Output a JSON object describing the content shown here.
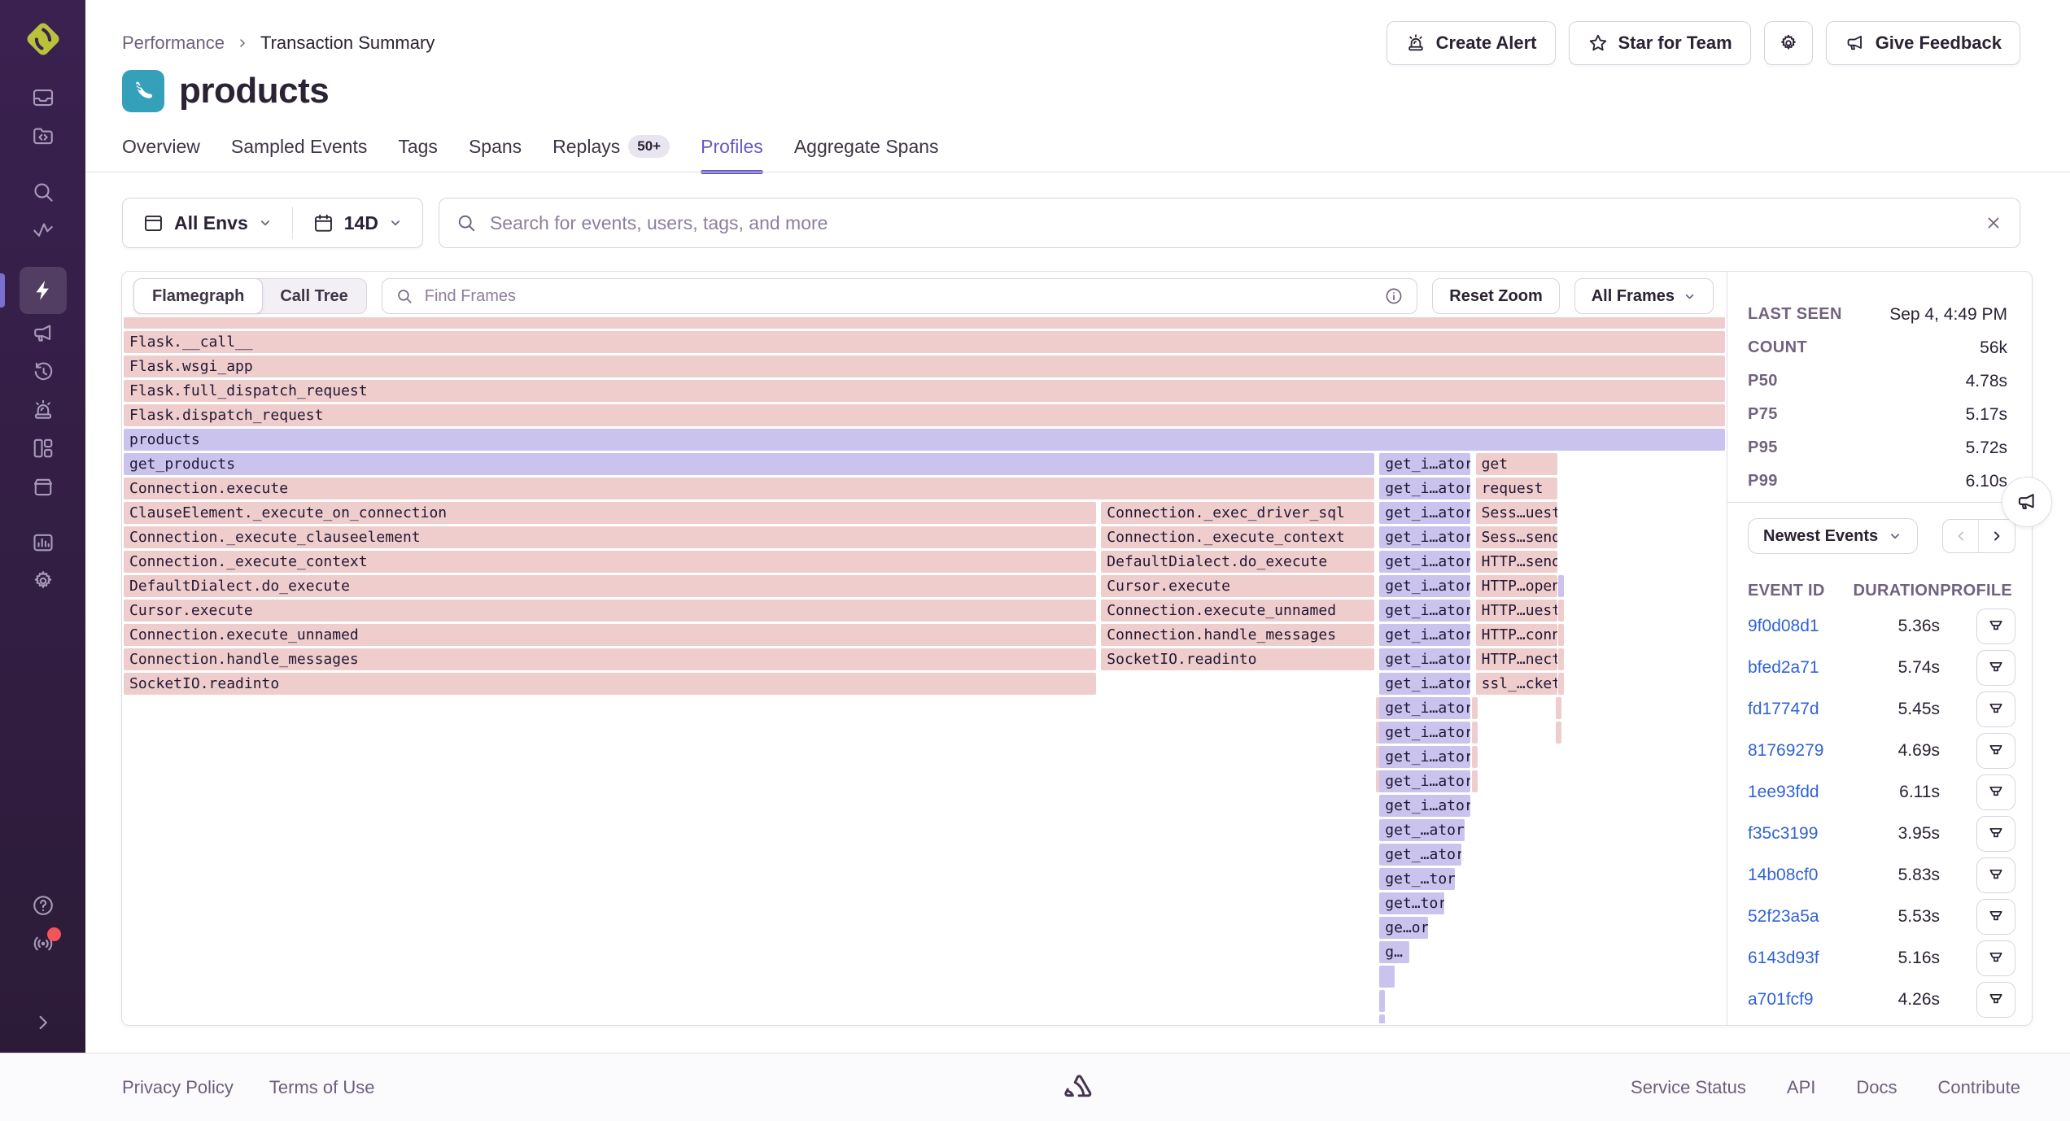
{
  "colors": {
    "accent": "#6559c5",
    "link_blue": "#3162d4",
    "frame_pink": "#efcdcc",
    "frame_purple": "#c9c3ee",
    "sidebar_top": "#3a2150",
    "sidebar_bottom": "#2c1b38",
    "text_dark": "#2b2233",
    "text_muted": "#71627e",
    "border": "#e0dce5",
    "notification_red": "#f55459",
    "platform_icon_teal": "#35a0b9",
    "logo_lime": "#b9c23b"
  },
  "sidebar": {
    "items": [
      {
        "name": "issues",
        "icon": "issues-icon"
      },
      {
        "name": "projects",
        "icon": "projects-icon"
      },
      {
        "name": "explore",
        "icon": "search-icon",
        "gap": true
      },
      {
        "name": "metrics",
        "icon": "metrics-icon"
      },
      {
        "name": "profiling",
        "icon": "lightning-icon",
        "active": true,
        "gap": true
      },
      {
        "name": "user-feedback",
        "icon": "megaphone-icon"
      },
      {
        "name": "replays",
        "icon": "clock-rewind-icon"
      },
      {
        "name": "alerts",
        "icon": "siren-icon"
      },
      {
        "name": "dashboards",
        "icon": "dashboards-icon"
      },
      {
        "name": "releases",
        "icon": "archive-icon"
      },
      {
        "name": "stats",
        "icon": "bar-chart-icon",
        "gap": true
      },
      {
        "name": "settings",
        "icon": "gear-icon"
      }
    ],
    "bottom_items": [
      {
        "name": "help",
        "icon": "help-icon"
      },
      {
        "name": "whats-new",
        "icon": "broadcast-icon",
        "dot": true
      },
      {
        "name": "expand-sidebar",
        "icon": "chevron-right-icon",
        "collapse": true
      }
    ]
  },
  "breadcrumb": {
    "items": [
      "Performance",
      "Transaction Summary"
    ]
  },
  "page": {
    "title": "products"
  },
  "header_actions": [
    {
      "name": "create-alert-button",
      "icon": "siren-icon",
      "label": "Create Alert"
    },
    {
      "name": "star-for-team-button",
      "icon": "star-icon",
      "label": "Star for Team"
    },
    {
      "name": "settings-button",
      "icon": "gear-icon",
      "label": ""
    },
    {
      "name": "give-feedback-button",
      "icon": "megaphone-icon",
      "label": "Give Feedback"
    }
  ],
  "tabs": [
    {
      "label": "Overview"
    },
    {
      "label": "Sampled Events"
    },
    {
      "label": "Tags"
    },
    {
      "label": "Spans"
    },
    {
      "label": "Replays",
      "badge": "50+"
    },
    {
      "label": "Profiles",
      "active": true
    },
    {
      "label": "Aggregate Spans"
    }
  ],
  "filters": {
    "environment": "All Envs",
    "date_range": "14D",
    "search_placeholder": "Search for events, users, tags, and more"
  },
  "profile_toolbar": {
    "view_options": [
      "Flamegraph",
      "Call Tree"
    ],
    "selected_view": "Flamegraph",
    "find_placeholder": "Find Frames",
    "reset_zoom_label": "Reset Zoom",
    "frame_filter_label": "All Frames"
  },
  "flamegraph": {
    "rows": [
      [
        [
          0,
          100,
          "r",
          ""
        ]
      ],
      [
        [
          0,
          100,
          "r",
          "Flask.__call__"
        ]
      ],
      [
        [
          0,
          100,
          "r",
          "Flask.wsgi_app"
        ]
      ],
      [
        [
          0,
          100,
          "r",
          "Flask.full_dispatch_request"
        ]
      ],
      [
        [
          0,
          100,
          "r",
          "Flask.dispatch_request"
        ]
      ],
      [
        [
          0,
          100,
          "p",
          "products"
        ]
      ],
      [
        [
          0,
          78.09,
          "p",
          "get_products"
        ],
        [
          78.42,
          5.68,
          "p",
          "get_i…ator"
        ],
        [
          84.43,
          5.11,
          "r",
          "get"
        ]
      ],
      [
        [
          0,
          78.09,
          "r",
          "Connection.execute"
        ],
        [
          78.42,
          5.68,
          "p",
          "get_i…ator"
        ],
        [
          84.43,
          5.11,
          "r",
          "request"
        ]
      ],
      [
        [
          0,
          60.71,
          "r",
          "ClauseElement._execute_on_connection"
        ],
        [
          61.04,
          17.05,
          "r",
          "Connection._exec_driver_sql"
        ],
        [
          78.42,
          5.68,
          "p",
          "get_i…ator"
        ],
        [
          84.43,
          5.11,
          "r",
          "Sess…uest"
        ]
      ],
      [
        [
          0,
          60.71,
          "r",
          "Connection._execute_clauseelement"
        ],
        [
          61.04,
          17.05,
          "r",
          "Connection._execute_context"
        ],
        [
          78.42,
          5.68,
          "p",
          "get_i…ator"
        ],
        [
          84.43,
          5.11,
          "r",
          "Sess…send"
        ]
      ],
      [
        [
          0,
          60.71,
          "r",
          "Connection._execute_context"
        ],
        [
          61.04,
          17.05,
          "r",
          "DefaultDialect.do_execute"
        ],
        [
          78.42,
          5.68,
          "p",
          "get_i…ator"
        ],
        [
          84.43,
          5.11,
          "r",
          "HTTP…send"
        ]
      ],
      [
        [
          0,
          60.71,
          "r",
          "DefaultDialect.do_execute"
        ],
        [
          61.04,
          17.05,
          "r",
          "Cursor.execute"
        ],
        [
          78.42,
          5.68,
          "p",
          "get_i…ator"
        ],
        [
          84.43,
          5.11,
          "r",
          "HTTP…open"
        ],
        [
          89.6,
          0.18,
          "p",
          ""
        ]
      ],
      [
        [
          0,
          60.71,
          "r",
          "Cursor.execute"
        ],
        [
          61.04,
          17.05,
          "r",
          "Connection.execute_unnamed"
        ],
        [
          78.42,
          5.68,
          "p",
          "get_i…ator"
        ],
        [
          84.43,
          5.11,
          "r",
          "HTTP…uest"
        ],
        [
          89.6,
          0.1,
          "r",
          ""
        ]
      ],
      [
        [
          0,
          60.71,
          "r",
          "Connection.execute_unnamed"
        ],
        [
          61.04,
          17.05,
          "r",
          "Connection.handle_messages"
        ],
        [
          78.42,
          5.68,
          "p",
          "get_i…ator"
        ],
        [
          84.43,
          5.11,
          "r",
          "HTTP…conn"
        ],
        [
          89.6,
          0.1,
          "r",
          ""
        ]
      ],
      [
        [
          0,
          60.71,
          "r",
          "Connection.handle_messages"
        ],
        [
          61.04,
          17.05,
          "r",
          "SocketIO.readinto"
        ],
        [
          78.42,
          5.68,
          "p",
          "get_i…ator"
        ],
        [
          84.43,
          5.11,
          "r",
          "HTTP…nect"
        ],
        [
          89.6,
          0.1,
          "r",
          ""
        ]
      ],
      [
        [
          0,
          60.71,
          "r",
          "SocketIO.readinto"
        ],
        [
          78.42,
          5.68,
          "p",
          "get_i…ator"
        ],
        [
          84.43,
          5.11,
          "r",
          "ssl_…cket"
        ],
        [
          89.6,
          0.1,
          "r",
          ""
        ]
      ],
      [
        [
          78.22,
          0.12,
          "r",
          ""
        ],
        [
          78.42,
          5.68,
          "p",
          "get_i…ator"
        ],
        [
          84.18,
          0.12,
          "r",
          ""
        ],
        [
          89.45,
          0.1,
          "r",
          ""
        ]
      ],
      [
        [
          78.22,
          0.12,
          "r",
          ""
        ],
        [
          78.42,
          5.68,
          "p",
          "get_i…ator"
        ],
        [
          84.18,
          0.12,
          "r",
          ""
        ],
        [
          89.45,
          0.1,
          "r",
          ""
        ]
      ],
      [
        [
          78.22,
          0.12,
          "r",
          ""
        ],
        [
          78.42,
          5.68,
          "p",
          "get_i…ator"
        ],
        [
          84.18,
          0.12,
          "r",
          ""
        ]
      ],
      [
        [
          78.22,
          0.12,
          "r",
          ""
        ],
        [
          78.42,
          5.68,
          "p",
          "get_i…ator"
        ],
        [
          84.18,
          0.12,
          "r",
          ""
        ]
      ],
      [
        [
          78.42,
          5.68,
          "p",
          "get_i…ator"
        ]
      ],
      [
        [
          78.42,
          5.33,
          "p",
          "get_…ator"
        ]
      ],
      [
        [
          78.42,
          5.12,
          "p",
          "get_…ator"
        ]
      ],
      [
        [
          78.42,
          4.72,
          "p",
          "get_…tor"
        ]
      ],
      [
        [
          78.42,
          4.06,
          "p",
          "get…tor"
        ]
      ],
      [
        [
          78.42,
          3.04,
          "p",
          "ge…or"
        ]
      ],
      [
        [
          78.42,
          1.88,
          "p",
          "g…"
        ]
      ],
      [
        [
          78.42,
          0.96,
          "p",
          ""
        ]
      ],
      [
        [
          78.42,
          0.3,
          "p",
          ""
        ]
      ],
      [
        [
          78.42,
          0.12,
          "p",
          ""
        ]
      ]
    ]
  },
  "summary_stats": [
    {
      "label": "LAST SEEN",
      "value": "Sep 4, 4:49 PM"
    },
    {
      "label": "COUNT",
      "value": "56k"
    },
    {
      "label": "P50",
      "value": "4.78s"
    },
    {
      "label": "P75",
      "value": "5.17s"
    },
    {
      "label": "P95",
      "value": "5.72s"
    },
    {
      "label": "P99",
      "value": "6.10s"
    }
  ],
  "events": {
    "sort_label": "Newest Events",
    "columns": [
      "EVENT ID",
      "DURATION",
      "PROFILE"
    ],
    "rows": [
      {
        "id": "9f0d08d1",
        "duration": "5.36s"
      },
      {
        "id": "bfed2a71",
        "duration": "5.74s"
      },
      {
        "id": "fd17747d",
        "duration": "5.45s"
      },
      {
        "id": "81769279",
        "duration": "4.69s"
      },
      {
        "id": "1ee93fdd",
        "duration": "6.11s"
      },
      {
        "id": "f35c3199",
        "duration": "3.95s"
      },
      {
        "id": "14b08cf0",
        "duration": "5.83s"
      },
      {
        "id": "52f23a5a",
        "duration": "5.53s"
      },
      {
        "id": "6143d93f",
        "duration": "5.16s"
      },
      {
        "id": "a701fcf9",
        "duration": "4.26s"
      }
    ]
  },
  "footer": {
    "left_links": [
      "Privacy Policy",
      "Terms of Use"
    ],
    "right_links": [
      "Service Status",
      "API",
      "Docs",
      "Contribute"
    ]
  }
}
